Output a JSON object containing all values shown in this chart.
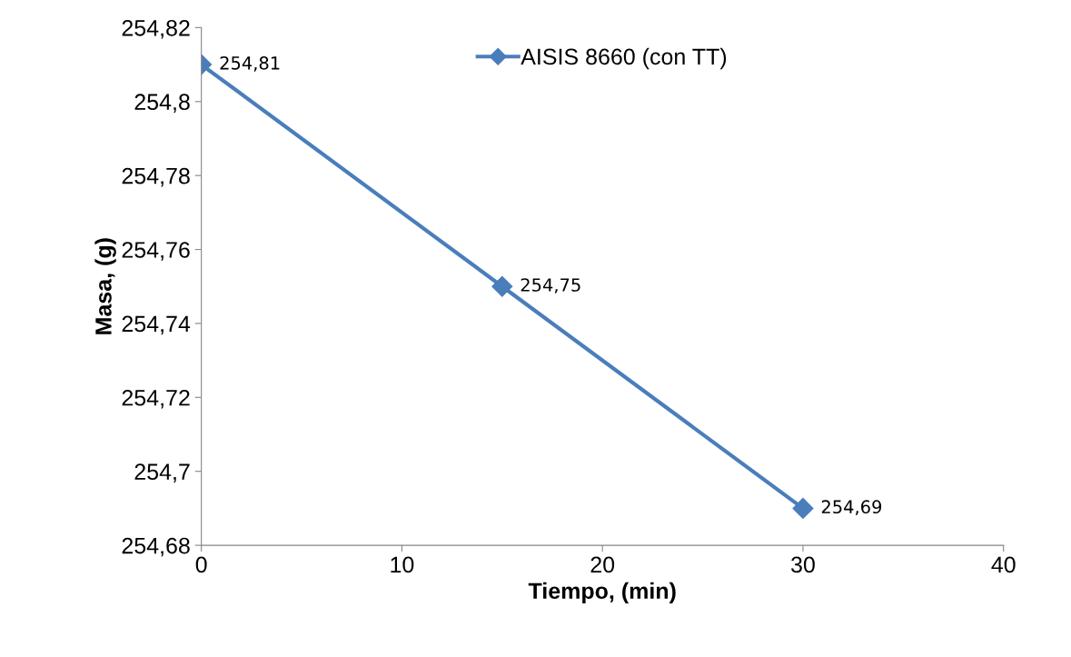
{
  "chart_data": {
    "type": "line",
    "xlabel": "Tiempo, (min)",
    "ylabel": "Masa, (g)",
    "x": [
      0,
      15,
      30
    ],
    "series": [
      {
        "name": "AISIS 8660 (con TT)",
        "color": "#4a7ebb",
        "values": [
          254.81,
          254.75,
          254.69
        ],
        "value_labels": [
          "254,81",
          "254,75",
          "254,69"
        ]
      }
    ],
    "xlim": [
      0,
      40
    ],
    "xticks": [
      0,
      10,
      20,
      30,
      40
    ],
    "ylim": [
      254.68,
      254.82
    ],
    "yticks": [
      {
        "value": 254.68,
        "label": "254,68"
      },
      {
        "value": 254.7,
        "label": "254,7"
      },
      {
        "value": 254.72,
        "label": "254,72"
      },
      {
        "value": 254.74,
        "label": "254,74"
      },
      {
        "value": 254.76,
        "label": "254,76"
      },
      {
        "value": 254.78,
        "label": "254,78"
      },
      {
        "value": 254.8,
        "label": "254,8"
      },
      {
        "value": 254.82,
        "label": "254,82"
      }
    ],
    "marker": "diamond",
    "line_style": "solid",
    "grid": false,
    "legend": "top"
  }
}
